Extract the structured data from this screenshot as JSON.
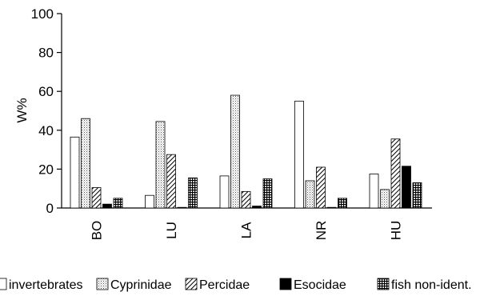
{
  "chart_data": {
    "type": "bar",
    "title": "",
    "xlabel": "",
    "ylabel": "W%",
    "ylim": [
      0,
      100
    ],
    "yticks": [
      0,
      20,
      40,
      60,
      80,
      100
    ],
    "ytick_labels": [
      "0",
      "20",
      "40",
      "60",
      "80",
      "100"
    ],
    "categories": [
      "BO",
      "LU",
      "LA",
      "NR",
      "HU"
    ],
    "grid": false,
    "legend_position": "bottom",
    "series": [
      {
        "name": "invertebrates",
        "pattern": "empty",
        "color": "#ffffff",
        "values": [
          36.5,
          6.5,
          16.5,
          55,
          17.5
        ]
      },
      {
        "name": "Cyprinidae",
        "pattern": "dots",
        "color": "#d9d9d9",
        "values": [
          46,
          44.5,
          58,
          14,
          9.5
        ]
      },
      {
        "name": "Percidae",
        "pattern": "hatch",
        "color": "#ffffff",
        "values": [
          10.5,
          27.5,
          8.5,
          21,
          35.5
        ]
      },
      {
        "name": "Esocidae",
        "pattern": "solid",
        "color": "#000000",
        "values": [
          2,
          0.3,
          1,
          0.3,
          21.5
        ]
      },
      {
        "name": "fish non-ident.",
        "pattern": "grid",
        "color": "#ffffff",
        "values": [
          5,
          15.5,
          15,
          5,
          13
        ]
      }
    ]
  }
}
